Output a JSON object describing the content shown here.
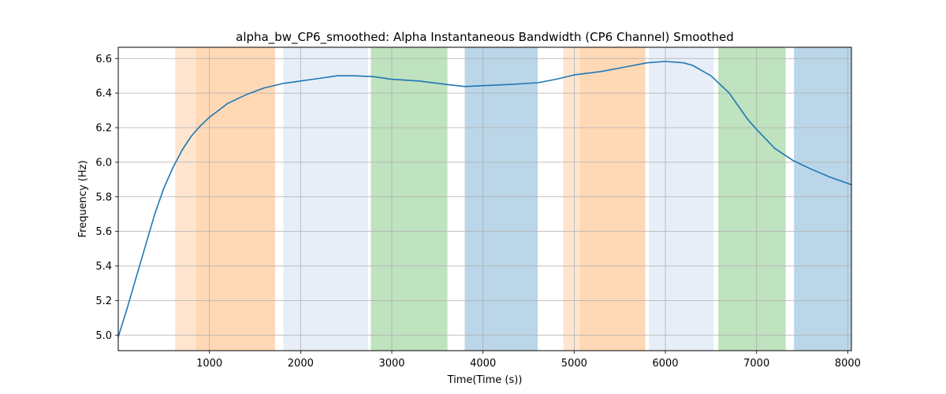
{
  "chart_data": {
    "type": "line",
    "title": "alpha_bw_CP6_smoothed: Alpha Instantaneous Bandwidth (CP6 Channel) Smoothed",
    "xlabel": "Time(Time (s))",
    "ylabel": "Frequency (Hz)",
    "xlim": [
      0,
      8040
    ],
    "ylim": [
      4.91,
      6.665
    ],
    "grid": true,
    "x_ticks": [
      1000,
      2000,
      3000,
      4000,
      5000,
      6000,
      7000,
      8000
    ],
    "y_ticks": [
      5.0,
      5.2,
      5.4,
      5.6,
      5.8,
      6.0,
      6.2,
      6.4,
      6.6
    ],
    "series": [
      {
        "color": "#1f77b4",
        "points": [
          [
            0,
            4.99
          ],
          [
            100,
            5.16
          ],
          [
            200,
            5.34
          ],
          [
            300,
            5.52
          ],
          [
            400,
            5.7
          ],
          [
            500,
            5.85
          ],
          [
            600,
            5.97
          ],
          [
            700,
            6.07
          ],
          [
            800,
            6.15
          ],
          [
            900,
            6.21
          ],
          [
            1000,
            6.26
          ],
          [
            1100,
            6.3
          ],
          [
            1200,
            6.34
          ],
          [
            1400,
            6.39
          ],
          [
            1600,
            6.43
          ],
          [
            1800,
            6.455
          ],
          [
            2000,
            6.47
          ],
          [
            2200,
            6.485
          ],
          [
            2400,
            6.5
          ],
          [
            2600,
            6.5
          ],
          [
            2800,
            6.495
          ],
          [
            3000,
            6.48
          ],
          [
            3300,
            6.47
          ],
          [
            3600,
            6.45
          ],
          [
            3800,
            6.438
          ],
          [
            4000,
            6.443
          ],
          [
            4300,
            6.45
          ],
          [
            4600,
            6.46
          ],
          [
            4800,
            6.48
          ],
          [
            5000,
            6.505
          ],
          [
            5300,
            6.525
          ],
          [
            5600,
            6.555
          ],
          [
            5800,
            6.575
          ],
          [
            6000,
            6.583
          ],
          [
            6200,
            6.575
          ],
          [
            6300,
            6.56
          ],
          [
            6500,
            6.5
          ],
          [
            6700,
            6.4
          ],
          [
            6900,
            6.25
          ],
          [
            7000,
            6.19
          ],
          [
            7200,
            6.08
          ],
          [
            7400,
            6.01
          ],
          [
            7600,
            5.96
          ],
          [
            7800,
            5.915
          ],
          [
            8040,
            5.87
          ]
        ]
      }
    ],
    "bands": [
      {
        "x0": 625,
        "x1": 850,
        "color": "#ff7f0e",
        "alpha": 0.2
      },
      {
        "x0": 850,
        "x1": 1720,
        "color": "#ff7f0e",
        "alpha": 0.3
      },
      {
        "x0": 1810,
        "x1": 2740,
        "color": "#aec7e8",
        "alpha": 0.3
      },
      {
        "x0": 2770,
        "x1": 3610,
        "color": "#2ca02c",
        "alpha": 0.3
      },
      {
        "x0": 3800,
        "x1": 4600,
        "color": "#1f77b4",
        "alpha": 0.3
      },
      {
        "x0": 4880,
        "x1": 5060,
        "color": "#ff7f0e",
        "alpha": 0.2
      },
      {
        "x0": 5060,
        "x1": 5780,
        "color": "#ff7f0e",
        "alpha": 0.3
      },
      {
        "x0": 5820,
        "x1": 6530,
        "color": "#aec7e8",
        "alpha": 0.3
      },
      {
        "x0": 6580,
        "x1": 7320,
        "color": "#2ca02c",
        "alpha": 0.3
      },
      {
        "x0": 7410,
        "x1": 8040,
        "color": "#1f77b4",
        "alpha": 0.3
      }
    ]
  }
}
